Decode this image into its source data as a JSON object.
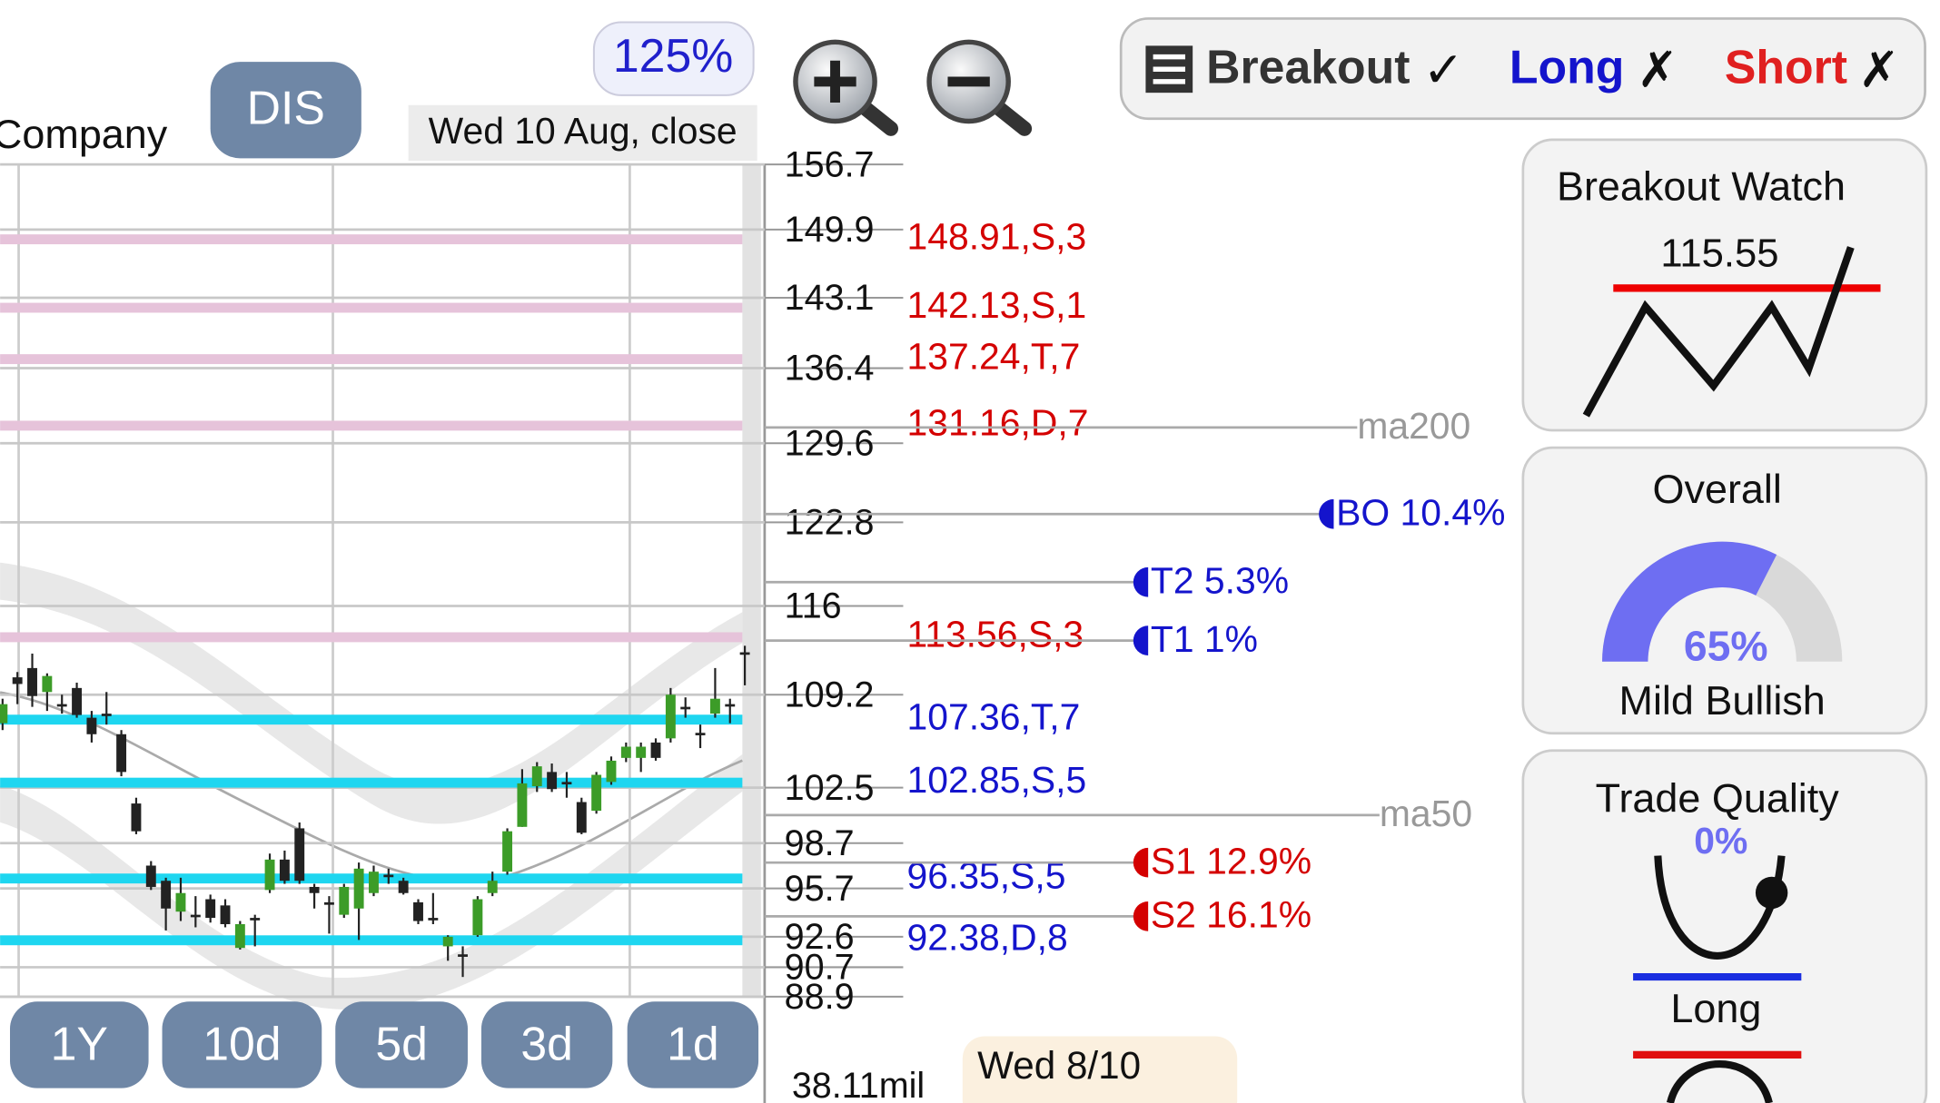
{
  "header": {
    "company": "Company",
    "symbol": "DIS",
    "zoom": "125%",
    "date_label": "Wed 10 Aug, close"
  },
  "signals": {
    "breakout": "Breakout",
    "breakout_mark": "✓",
    "long": "Long",
    "long_mark": "✗",
    "short": "Short",
    "short_mark": "✗"
  },
  "panels": {
    "breakout_watch": {
      "title": "Breakout Watch",
      "value": "115.55"
    },
    "overall": {
      "title": "Overall",
      "value": 65,
      "value_label": "65%",
      "label": "Mild Bullish"
    },
    "trade_quality": {
      "title": "Trade Quality",
      "value": "0%",
      "label": "Long"
    }
  },
  "range_buttons": [
    "1Y",
    "10d",
    "5d",
    "3d",
    "1d"
  ],
  "volume_label": "38.11mil",
  "cursor_date": "Wed 8/10",
  "chart_data": {
    "type": "candlestick",
    "log_scale": true,
    "grid": true,
    "ylim": [
      88.9,
      156.7
    ],
    "yticks": [
      156.7,
      149.9,
      143.1,
      136.4,
      129.6,
      122.8,
      116,
      109.2,
      102.5,
      98.7,
      95.7,
      92.6,
      90.7,
      88.9
    ],
    "up_color": "#3c9c28",
    "down_color": "#222222",
    "open": [
      107.1,
      110.5,
      111.2,
      109.4,
      108.5,
      109.7,
      107.5,
      107.8,
      106.3,
      101.4,
      97.2,
      96.2,
      94.2,
      94.0,
      95.0,
      94.6,
      91.9,
      93.8,
      95.6,
      97.6,
      99.7,
      95.8,
      94.8,
      94.0,
      94.4,
      95.4,
      96.6,
      96.2,
      94.8,
      93.8,
      92.0,
      91.5,
      92.7,
      95.4,
      96.8,
      99.8,
      102.6,
      103.6,
      102.9,
      101.5,
      100.9,
      102.9,
      104.6,
      104.6,
      105.7,
      106.0,
      108.3,
      106.4,
      107.8,
      108.5,
      112.4
    ],
    "high": [
      108.9,
      110.9,
      112.3,
      110.8,
      109.2,
      110.1,
      108.0,
      109.4,
      106.6,
      101.8,
      97.5,
      96.4,
      96.4,
      95.2,
      95.3,
      95.0,
      93.6,
      94.0,
      98.0,
      98.2,
      100.1,
      96.0,
      95.2,
      96.0,
      97.4,
      97.2,
      97.0,
      96.4,
      95.0,
      95.4,
      92.7,
      92.0,
      95.2,
      96.8,
      99.7,
      103.8,
      104.3,
      104.2,
      103.6,
      101.8,
      103.6,
      104.7,
      105.7,
      105.7,
      106.0,
      109.7,
      109.0,
      107.0,
      111.2,
      108.9,
      112.9
    ],
    "low": [
      106.6,
      108.5,
      108.3,
      108.0,
      107.8,
      107.5,
      105.7,
      107.0,
      103.3,
      99.3,
      95.6,
      93.0,
      93.6,
      93.2,
      93.5,
      93.2,
      91.8,
      92.0,
      95.4,
      96.0,
      96.0,
      94.4,
      92.8,
      93.8,
      92.4,
      95.2,
      96.0,
      95.3,
      93.4,
      93.4,
      91.1,
      90.1,
      92.6,
      95.2,
      96.6,
      99.8,
      102.2,
      102.2,
      101.8,
      99.3,
      100.7,
      102.7,
      104.3,
      103.6,
      104.4,
      105.7,
      107.5,
      105.3,
      107.5,
      107.1,
      109.9
    ],
    "close": [
      108.5,
      110.0,
      109.1,
      110.6,
      108.4,
      107.7,
      106.3,
      107.7,
      103.6,
      99.5,
      95.8,
      94.4,
      95.4,
      93.9,
      93.8,
      93.4,
      93.4,
      93.8,
      97.6,
      96.2,
      96.2,
      95.4,
      94.8,
      95.8,
      97.0,
      96.8,
      96.6,
      95.4,
      93.6,
      93.8,
      92.6,
      91.5,
      95.0,
      96.2,
      99.5,
      102.8,
      104.0,
      102.4,
      102.9,
      99.4,
      103.4,
      104.4,
      105.4,
      105.4,
      104.6,
      109.2,
      108.3,
      106.4,
      108.9,
      108.5,
      112.4
    ],
    "levels": [
      {
        "value": 148.91,
        "label": "148.91,S,3",
        "color": "#e6c3da",
        "label_color": "#d40000"
      },
      {
        "value": 142.13,
        "label": "142.13,S,1",
        "color": "#e6c3da",
        "label_color": "#d40000"
      },
      {
        "value": 137.24,
        "label": "137.24,T,7",
        "color": "#e6c3da",
        "label_color": "#d40000"
      },
      {
        "value": 131.16,
        "label": "131.16,D,7",
        "color": "#e6c3da",
        "label_color": "#d40000"
      },
      {
        "value": 113.56,
        "label": "113.56,S,3",
        "color": "#e6c3da",
        "label_color": "#d40000"
      },
      {
        "value": 107.36,
        "label": "107.36,T,7",
        "color": "#1ed6f0",
        "label_color": "#1414cc"
      },
      {
        "value": 102.85,
        "label": "102.85,S,5",
        "color": "#1ed6f0",
        "label_color": "#1414cc"
      },
      {
        "value": 96.35,
        "label": "96.35,S,5",
        "color": "#1ed6f0",
        "label_color": "#1414cc"
      },
      {
        "value": 92.38,
        "label": "92.38,D,8",
        "color": "#1ed6f0",
        "label_color": "#1414cc"
      }
    ],
    "markers": [
      {
        "value": 131.0,
        "label": "ma200",
        "color": "#999999"
      },
      {
        "value": 123.5,
        "label": "BO 10.4%",
        "color": "#1414cc"
      },
      {
        "value": 117.9,
        "label": "T2 5.3%",
        "color": "#1414cc"
      },
      {
        "value": 113.3,
        "label": "T1 1%",
        "color": "#1414cc"
      },
      {
        "value": 100.6,
        "label": "ma50",
        "color": "#999999"
      },
      {
        "value": 97.4,
        "label": "S1 12.9%",
        "color": "#d40000"
      },
      {
        "value": 93.9,
        "label": "S2 16.1%",
        "color": "#d40000"
      }
    ]
  }
}
